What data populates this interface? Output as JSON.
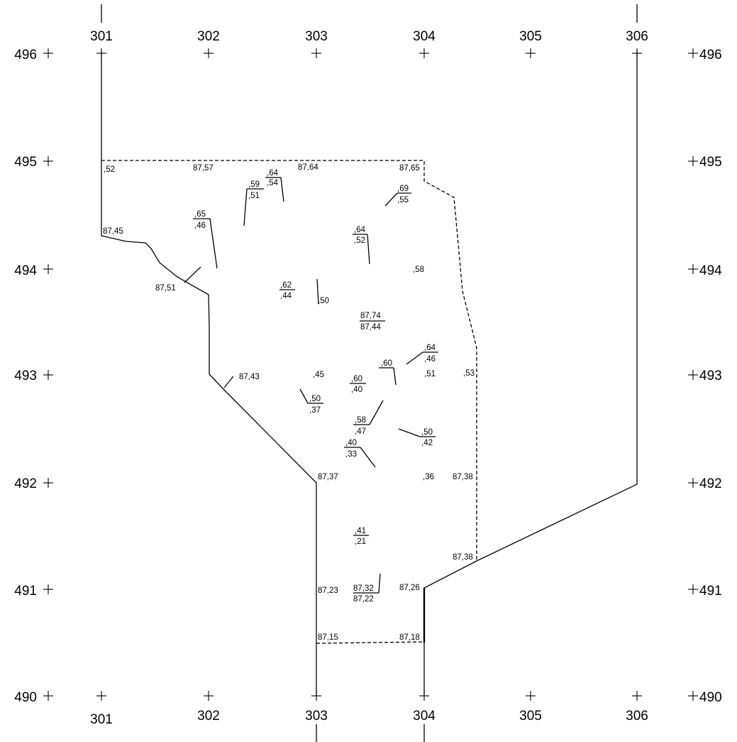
{
  "plan": {
    "x_grid": [
      "301",
      "302",
      "303",
      "304",
      "305",
      "306"
    ],
    "y_grid": [
      "496",
      "495",
      "494",
      "493",
      "492",
      "491",
      "490"
    ],
    "spot_heights": [
      ",52",
      "87,57",
      "87,64",
      "87,65",
      ",64",
      ",54",
      ",59",
      ",51",
      ",69",
      ",55",
      "87,45",
      ",65",
      ",46",
      ",64",
      ",52",
      ",58",
      "87,51",
      ",62",
      ",44",
      ",50",
      "87,74",
      "87,44",
      ",64",
      ",46",
      "87,43",
      ",45",
      ",60",
      ",40",
      ",60",
      ",51",
      ",53",
      ",50",
      ",37",
      ",58",
      ",47",
      ",50",
      ",42",
      ",40",
      ",33",
      "87,37",
      ",36",
      "87,38",
      ",41",
      ",21",
      "87,38",
      "87,23",
      "87,32",
      "87,22",
      "87,26",
      "87,15",
      "87,18"
    ]
  }
}
